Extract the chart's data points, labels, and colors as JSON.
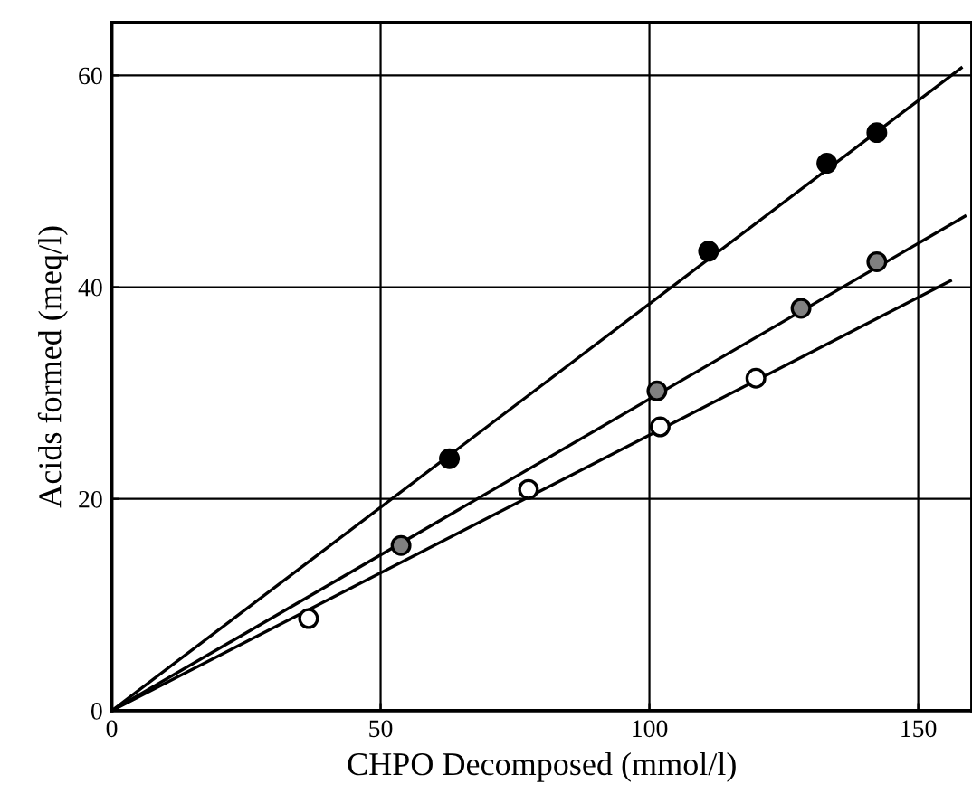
{
  "chart_data": {
    "type": "scatter",
    "xlabel": "CHPO Decomposed (mmol/l)",
    "ylabel": "Acids formed (meq/l)",
    "xlim": [
      0,
      160
    ],
    "ylim": [
      0,
      65
    ],
    "xticks": [
      0,
      50,
      100,
      150
    ],
    "yticks": [
      0,
      20,
      40,
      60
    ],
    "grid": true,
    "marker": "circle",
    "series": [
      {
        "color": "#000000",
        "x": [
          62.8,
          111,
          133,
          142.3
        ],
        "values": [
          23.8,
          43.4,
          51.7,
          54.6
        ]
      },
      {
        "color": "#808080",
        "x": [
          53.8,
          101.4,
          128.2,
          142.3
        ],
        "values": [
          15.6,
          30.2,
          38.0,
          42.4
        ]
      },
      {
        "color": "#ffffff",
        "x": [
          36.6,
          77.5,
          102,
          119.8
        ],
        "values": [
          8.7,
          20.9,
          26.8,
          31.4
        ]
      },
      {
        "type": "line",
        "marker": "none",
        "color": "#000000",
        "x": [
          0,
          158
        ],
        "values": [
          0,
          60.7
        ]
      },
      {
        "type": "line",
        "marker": "none",
        "color": "#000000",
        "x": [
          0,
          158.7
        ],
        "values": [
          0,
          46.7
        ]
      },
      {
        "type": "line",
        "marker": "none",
        "color": "#000000",
        "x": [
          0,
          156
        ],
        "values": [
          0,
          40.6
        ]
      }
    ]
  }
}
